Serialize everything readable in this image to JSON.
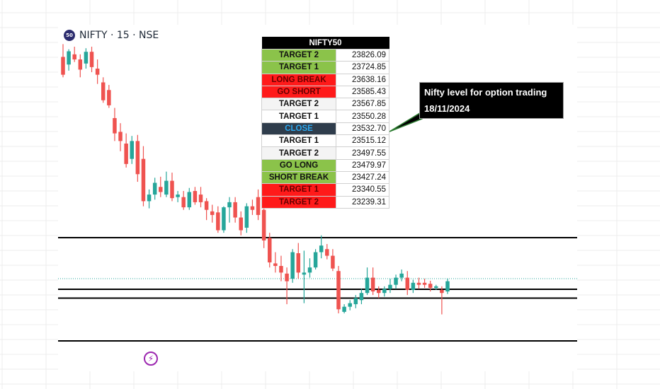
{
  "header": {
    "badge": "50",
    "symbol": "NIFTY · 15 · NSE"
  },
  "table": {
    "title": "NIFTY50",
    "rows": [
      {
        "label": "TARGET 2",
        "value": "23826.09",
        "color": "green"
      },
      {
        "label": "TARGET 1",
        "value": "23724.85",
        "color": "green"
      },
      {
        "label": "LONG BREAK",
        "value": "23638.16",
        "color": "red"
      },
      {
        "label": "GO SHORT",
        "value": "23585.43",
        "color": "red"
      },
      {
        "label": "TARGET 2",
        "value": "23567.85",
        "color": "light"
      },
      {
        "label": "TARGET 1",
        "value": "23550.28",
        "color": "white"
      },
      {
        "label": "CLOSE",
        "value": "23532.70",
        "color": "close"
      },
      {
        "label": "TARGET 1",
        "value": "23515.12",
        "color": "white"
      },
      {
        "label": "TARGET 2",
        "value": "23497.55",
        "color": "light"
      },
      {
        "label": "GO LONG",
        "value": "23479.97",
        "color": "green"
      },
      {
        "label": "SHORT BREAK",
        "value": "23427.24",
        "color": "green"
      },
      {
        "label": "TARGET 1",
        "value": "23340.55",
        "color": "red"
      },
      {
        "label": "TARGET 2",
        "value": "23239.31",
        "color": "red"
      }
    ]
  },
  "callout": {
    "line1": "Nifty level for option trading",
    "line2": "18/11/2024"
  },
  "footer": {
    "icon": "lightning-icon"
  },
  "colors": {
    "up": "#26a69a",
    "down": "#ef5350",
    "level_line": "#000000",
    "callout_border": "#2e7d32"
  },
  "chart_data": {
    "type": "candlestick",
    "title": "",
    "timeframe": "15",
    "exchange": "NSE",
    "candles": [
      {
        "o": 23695,
        "h": 23720,
        "l": 23655,
        "c": 23660
      },
      {
        "o": 23680,
        "h": 23710,
        "l": 23668,
        "c": 23706
      },
      {
        "o": 23700,
        "h": 23715,
        "l": 23685,
        "c": 23690
      },
      {
        "o": 23690,
        "h": 23700,
        "l": 23655,
        "c": 23670
      },
      {
        "o": 23682,
        "h": 23712,
        "l": 23672,
        "c": 23705
      },
      {
        "o": 23705,
        "h": 23715,
        "l": 23665,
        "c": 23675
      },
      {
        "o": 23672,
        "h": 23690,
        "l": 23642,
        "c": 23660
      },
      {
        "o": 23645,
        "h": 23655,
        "l": 23605,
        "c": 23610
      },
      {
        "o": 23630,
        "h": 23640,
        "l": 23595,
        "c": 23600
      },
      {
        "o": 23575,
        "h": 23595,
        "l": 23530,
        "c": 23545
      },
      {
        "o": 23548,
        "h": 23565,
        "l": 23510,
        "c": 23530
      },
      {
        "o": 23525,
        "h": 23545,
        "l": 23478,
        "c": 23485
      },
      {
        "o": 23495,
        "h": 23540,
        "l": 23485,
        "c": 23530
      },
      {
        "o": 23530,
        "h": 23542,
        "l": 23450,
        "c": 23465
      },
      {
        "o": 23495,
        "h": 23520,
        "l": 23402,
        "c": 23412
      },
      {
        "o": 23412,
        "h": 23435,
        "l": 23398,
        "c": 23425
      },
      {
        "o": 23425,
        "h": 23458,
        "l": 23415,
        "c": 23448
      },
      {
        "o": 23440,
        "h": 23460,
        "l": 23420,
        "c": 23430
      },
      {
        "o": 23425,
        "h": 23470,
        "l": 23420,
        "c": 23452
      },
      {
        "o": 23452,
        "h": 23468,
        "l": 23412,
        "c": 23418
      },
      {
        "o": 23420,
        "h": 23432,
        "l": 23410,
        "c": 23425
      },
      {
        "o": 23420,
        "h": 23432,
        "l": 23395,
        "c": 23400
      },
      {
        "o": 23400,
        "h": 23438,
        "l": 23395,
        "c": 23430
      },
      {
        "o": 23432,
        "h": 23440,
        "l": 23405,
        "c": 23410
      },
      {
        "o": 23425,
        "h": 23440,
        "l": 23400,
        "c": 23410
      },
      {
        "o": 23412,
        "h": 23418,
        "l": 23375,
        "c": 23395
      },
      {
        "o": 23392,
        "h": 23405,
        "l": 23370,
        "c": 23385
      },
      {
        "o": 23390,
        "h": 23402,
        "l": 23350,
        "c": 23355
      },
      {
        "o": 23355,
        "h": 23402,
        "l": 23350,
        "c": 23400
      },
      {
        "o": 23400,
        "h": 23420,
        "l": 23370,
        "c": 23410
      },
      {
        "o": 23410,
        "h": 23420,
        "l": 23370,
        "c": 23380
      },
      {
        "o": 23380,
        "h": 23392,
        "l": 23345,
        "c": 23355
      },
      {
        "o": 23360,
        "h": 23408,
        "l": 23350,
        "c": 23402
      },
      {
        "o": 23402,
        "h": 23415,
        "l": 23385,
        "c": 23395
      },
      {
        "o": 23420,
        "h": 23435,
        "l": 23375,
        "c": 23385
      },
      {
        "o": 23395,
        "h": 23405,
        "l": 23320,
        "c": 23335
      },
      {
        "o": 23340,
        "h": 23350,
        "l": 23282,
        "c": 23292
      },
      {
        "o": 23290,
        "h": 23312,
        "l": 23272,
        "c": 23285
      },
      {
        "o": 23285,
        "h": 23305,
        "l": 23255,
        "c": 23272
      },
      {
        "o": 23270,
        "h": 23282,
        "l": 23210,
        "c": 23255
      },
      {
        "o": 23260,
        "h": 23318,
        "l": 23252,
        "c": 23312
      },
      {
        "o": 23310,
        "h": 23330,
        "l": 23260,
        "c": 23272
      },
      {
        "o": 23268,
        "h": 23315,
        "l": 23212,
        "c": 23272
      },
      {
        "o": 23272,
        "h": 23300,
        "l": 23262,
        "c": 23282
      },
      {
        "o": 23282,
        "h": 23318,
        "l": 23278,
        "c": 23312
      },
      {
        "o": 23312,
        "h": 23345,
        "l": 23300,
        "c": 23325
      },
      {
        "o": 23318,
        "h": 23328,
        "l": 23298,
        "c": 23305
      },
      {
        "o": 23305,
        "h": 23318,
        "l": 23275,
        "c": 23280
      },
      {
        "o": 23275,
        "h": 23285,
        "l": 23192,
        "c": 23200
      },
      {
        "o": 23195,
        "h": 23210,
        "l": 23192,
        "c": 23205
      },
      {
        "o": 23205,
        "h": 23218,
        "l": 23198,
        "c": 23212
      },
      {
        "o": 23210,
        "h": 23228,
        "l": 23202,
        "c": 23222
      },
      {
        "o": 23218,
        "h": 23240,
        "l": 23210,
        "c": 23232
      },
      {
        "o": 23232,
        "h": 23282,
        "l": 23228,
        "c": 23262
      },
      {
        "o": 23262,
        "h": 23282,
        "l": 23228,
        "c": 23235
      },
      {
        "o": 23238,
        "h": 23245,
        "l": 23222,
        "c": 23232
      },
      {
        "o": 23232,
        "h": 23245,
        "l": 23225,
        "c": 23240
      },
      {
        "o": 23240,
        "h": 23260,
        "l": 23232,
        "c": 23248
      },
      {
        "o": 23248,
        "h": 23268,
        "l": 23240,
        "c": 23262
      },
      {
        "o": 23262,
        "h": 23278,
        "l": 23255,
        "c": 23270
      },
      {
        "o": 23262,
        "h": 23275,
        "l": 23228,
        "c": 23238
      },
      {
        "o": 23238,
        "h": 23258,
        "l": 23232,
        "c": 23252
      },
      {
        "o": 23252,
        "h": 23262,
        "l": 23240,
        "c": 23248
      },
      {
        "o": 23252,
        "h": 23260,
        "l": 23242,
        "c": 23248
      },
      {
        "o": 23250,
        "h": 23256,
        "l": 23235,
        "c": 23242
      },
      {
        "o": 23242,
        "h": 23248,
        "l": 23238,
        "c": 23245
      },
      {
        "o": 23238,
        "h": 23245,
        "l": 23190,
        "c": 23232
      },
      {
        "o": 23235,
        "h": 23260,
        "l": 23230,
        "c": 23255
      }
    ],
    "horizontal_lines": [
      23340.55,
      23239.31,
      23222.0,
      23138.0
    ],
    "current_price_line": 23260,
    "ylim": [
      23138,
      23740
    ]
  }
}
